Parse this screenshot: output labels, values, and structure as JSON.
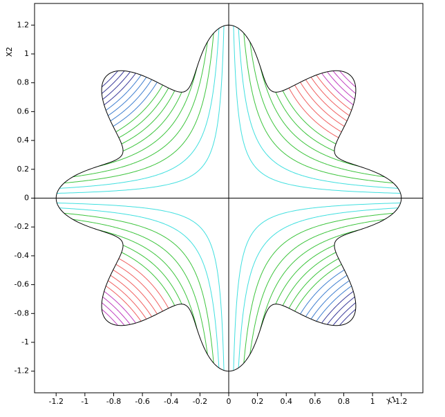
{
  "chart_data": {
    "type": "contour",
    "function": "X1*X2",
    "region": {
      "r0": 1,
      "amp": 0.2,
      "lobes": 8
    },
    "levels": [
      -0.68,
      -0.64,
      -0.6,
      -0.56,
      -0.52,
      -0.48,
      -0.44,
      -0.4,
      -0.36,
      -0.32,
      -0.28,
      -0.24,
      -0.2,
      -0.16,
      -0.12,
      -0.08,
      -0.04,
      0.04,
      0.08,
      0.12,
      0.16,
      0.2,
      0.24,
      0.28,
      0.32,
      0.36,
      0.4,
      0.44,
      0.48,
      0.52,
      0.56,
      0.6,
      0.64,
      0.68
    ],
    "colors": [
      "#3a3a9a",
      "#3a3a9a",
      "#3a3a9a",
      "#3a3a9a",
      "#3f7fd0",
      "#3f7fd0",
      "#3f7fd0",
      "#3f7fd0",
      "#3cc43c",
      "#3cc43c",
      "#3cc43c",
      "#3cc43c",
      "#3cc43c",
      "#3cc43c",
      "#3cc43c",
      "#3fdfdf",
      "#3fdfdf",
      "#3fdfdf",
      "#3fdfdf",
      "#3cc43c",
      "#3cc43c",
      "#3cc43c",
      "#3cc43c",
      "#3cc43c",
      "#f06060",
      "#f06060",
      "#f06060",
      "#f06060",
      "#f06060",
      "#f06060",
      "#c040c0",
      "#c040c0",
      "#c040c0",
      "#c040c0"
    ],
    "xlabel": "X1",
    "ylabel": "X2",
    "xlim": [
      -1.35,
      1.35
    ],
    "ylim": [
      -1.35,
      1.35
    ],
    "xticks": [
      -1.2,
      -1,
      -0.8,
      -0.6,
      -0.4,
      -0.2,
      0,
      0.2,
      0.4,
      0.6,
      0.8,
      1,
      1.2
    ],
    "yticks": [
      -1.2,
      -1,
      -0.8,
      -0.6,
      -0.4,
      -0.2,
      0,
      0.2,
      0.4,
      0.6,
      0.8,
      1,
      1.2
    ]
  }
}
